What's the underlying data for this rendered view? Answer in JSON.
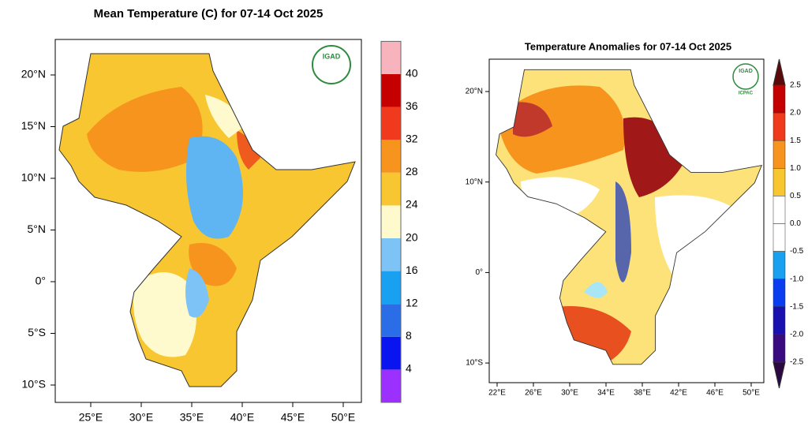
{
  "maps": [
    {
      "title": "Mean Temperature (C) for 07-14 Oct 2025",
      "logo": "IGAD",
      "lat_labels": [
        "20°N",
        "15°N",
        "10°N",
        "5°N",
        "0°",
        "5°S",
        "10°S"
      ],
      "lon_labels": [
        "25°E",
        "30°E",
        "35°E",
        "40°E",
        "45°E",
        "50°E"
      ],
      "colorbar_labels": [
        "4",
        "8",
        "12",
        "16",
        "20",
        "24",
        "28",
        "32",
        "36",
        "40"
      ]
    },
    {
      "title": "Temperature Anomalies for 07-14 Oct 2025",
      "logo": "IGAD",
      "logo_sub": "ICPAC",
      "lat_labels": [
        "20°N",
        "10°N",
        "0°",
        "10°S"
      ],
      "lon_labels": [
        "22°E",
        "26°E",
        "30°E",
        "34°E",
        "38°E",
        "42°E",
        "46°E",
        "50°E"
      ],
      "colorbar_labels": [
        "2.5",
        "2.0",
        "1.5",
        "1.0",
        "0.5",
        "0.0",
        "-0.5",
        "-1.0",
        "-1.5",
        "-2.0",
        "-2.5"
      ]
    }
  ]
}
